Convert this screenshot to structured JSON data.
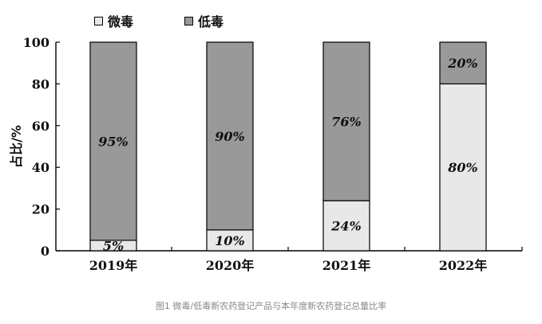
{
  "chart_data": {
    "type": "bar",
    "stacked": true,
    "categories": [
      "2019年",
      "2020年",
      "2021年",
      "2022年"
    ],
    "series": [
      {
        "name": "微毒",
        "values": [
          5,
          10,
          24,
          80
        ],
        "labels": [
          "5%",
          "10%",
          "24%",
          "80%"
        ],
        "color": "#e8e8e8"
      },
      {
        "name": "低毒",
        "values": [
          95,
          90,
          76,
          20
        ],
        "labels": [
          "95%",
          "90%",
          "76%",
          "20%"
        ],
        "color": "#999999"
      }
    ],
    "ylabel": "占比/%",
    "ylim": [
      0,
      100
    ],
    "yticks": [
      0,
      20,
      40,
      60,
      80,
      100
    ],
    "legend": "top-left",
    "grid": false
  },
  "caption": "图1 微毒/低毒新农药登记产品与本年度新农药登记总量比率"
}
